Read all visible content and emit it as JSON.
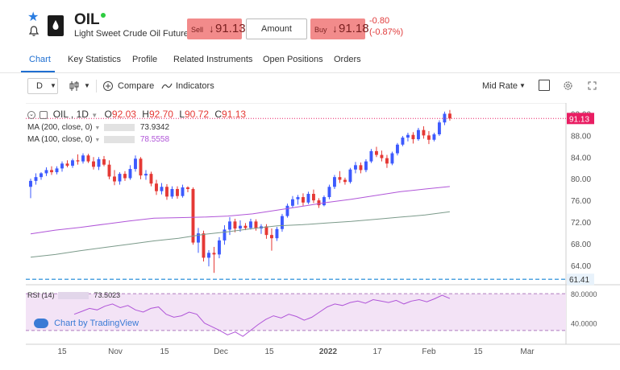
{
  "header": {
    "symbol": "OIL",
    "description": "Light Sweet Crude Oil Futures",
    "sell": {
      "label": "Sell",
      "arrow": "↓",
      "price": "91.13"
    },
    "amount_placeholder": "Amount",
    "buy": {
      "label": "Buy",
      "arrow": "↓",
      "price": "91.18"
    },
    "change_abs": "-0.80",
    "change_pct": "(-0.87%)"
  },
  "tabs": [
    {
      "label": "Chart",
      "active": true
    },
    {
      "label": "Key Statistics"
    },
    {
      "label": "Profile"
    },
    {
      "label": "Related Instruments"
    },
    {
      "label": "Open Positions"
    },
    {
      "label": "Orders"
    }
  ],
  "toolbar": {
    "interval": "D",
    "compare_label": "Compare",
    "indicators_label": "Indicators",
    "rate": "Mid Rate"
  },
  "legend": {
    "title": "OIL , 1D",
    "o_label": "O",
    "o_value": "92.03",
    "h_label": "H",
    "h_value": "92.70",
    "l_label": "L",
    "l_value": "90.72",
    "c_label": "C",
    "c_value": "91.13",
    "ma200_label": "MA (200, close, 0)",
    "ma200_value": "73.9342",
    "ma100_label": "MA (100, close, 0)",
    "ma100_value": "78.5558",
    "rsi_label": "RSI (14)",
    "rsi_value": "73.5023",
    "watermark": "Chart by TradingView"
  },
  "price_axis": {
    "ticks": [
      "92.00",
      "88.00",
      "84.00",
      "80.00",
      "76.00",
      "72.00",
      "68.00",
      "64.00"
    ],
    "last_price": "91.13",
    "dashed_level": "61.41"
  },
  "rsi_axis": {
    "ticks": [
      "80.0000",
      "40.0000"
    ]
  },
  "time_axis": {
    "ticks": [
      "15",
      "Nov",
      "15",
      "Dec",
      "15",
      "2022",
      "17",
      "Feb",
      "15",
      "Mar"
    ]
  },
  "colors": {
    "up": "#3d5afe",
    "down": "#e53935",
    "ma200": "#7b9a8a",
    "ma100": "#b055d8",
    "rsi": "#b055d8",
    "last_price_bg": "#e91e63",
    "dashed_level_bg": "#4fa3e0",
    "accent": "#1f6fd1"
  },
  "chart_data": {
    "type": "candlestick",
    "ylim": [
      61,
      94
    ],
    "last_close": 91.13,
    "dashed_level": 61.41,
    "candles": [
      {
        "o": 78.5,
        "h": 80.0,
        "l": 76.4,
        "c": 79.6
      },
      {
        "o": 79.6,
        "h": 81.0,
        "l": 78.9,
        "c": 80.3
      },
      {
        "o": 80.3,
        "h": 81.2,
        "l": 79.8,
        "c": 81.0
      },
      {
        "o": 81.0,
        "h": 82.1,
        "l": 80.5,
        "c": 81.6
      },
      {
        "o": 81.6,
        "h": 82.3,
        "l": 80.7,
        "c": 81.2
      },
      {
        "o": 81.2,
        "h": 82.3,
        "l": 80.8,
        "c": 81.9
      },
      {
        "o": 81.9,
        "h": 83.2,
        "l": 81.3,
        "c": 82.8
      },
      {
        "o": 82.8,
        "h": 83.4,
        "l": 82.1,
        "c": 82.4
      },
      {
        "o": 82.4,
        "h": 83.7,
        "l": 82.0,
        "c": 83.4
      },
      {
        "o": 83.4,
        "h": 84.5,
        "l": 82.6,
        "c": 83.2
      },
      {
        "o": 83.2,
        "h": 84.7,
        "l": 82.8,
        "c": 84.3
      },
      {
        "o": 84.3,
        "h": 84.6,
        "l": 82.9,
        "c": 83.2
      },
      {
        "o": 83.2,
        "h": 84.0,
        "l": 81.7,
        "c": 82.2
      },
      {
        "o": 82.2,
        "h": 84.0,
        "l": 81.6,
        "c": 83.6
      },
      {
        "o": 83.6,
        "h": 84.2,
        "l": 82.3,
        "c": 82.6
      },
      {
        "o": 82.6,
        "h": 83.4,
        "l": 79.9,
        "c": 80.4
      },
      {
        "o": 80.4,
        "h": 81.6,
        "l": 78.8,
        "c": 79.5
      },
      {
        "o": 79.5,
        "h": 81.2,
        "l": 78.9,
        "c": 80.9
      },
      {
        "o": 80.9,
        "h": 81.4,
        "l": 79.6,
        "c": 80.1
      },
      {
        "o": 80.1,
        "h": 82.5,
        "l": 79.8,
        "c": 81.8
      },
      {
        "o": 81.8,
        "h": 84.3,
        "l": 81.3,
        "c": 83.7
      },
      {
        "o": 83.7,
        "h": 84.0,
        "l": 79.9,
        "c": 80.6
      },
      {
        "o": 80.6,
        "h": 81.6,
        "l": 79.8,
        "c": 80.9
      },
      {
        "o": 80.9,
        "h": 81.3,
        "l": 78.6,
        "c": 79.1
      },
      {
        "o": 79.1,
        "h": 79.8,
        "l": 77.0,
        "c": 77.7
      },
      {
        "o": 77.7,
        "h": 79.2,
        "l": 77.1,
        "c": 78.5
      },
      {
        "o": 78.5,
        "h": 79.0,
        "l": 76.1,
        "c": 76.7
      },
      {
        "o": 76.7,
        "h": 78.6,
        "l": 76.3,
        "c": 78.1
      },
      {
        "o": 78.1,
        "h": 78.6,
        "l": 76.3,
        "c": 76.8
      },
      {
        "o": 76.8,
        "h": 78.9,
        "l": 76.5,
        "c": 78.4
      },
      {
        "o": 78.4,
        "h": 78.6,
        "l": 77.5,
        "c": 78.1
      },
      {
        "o": 78.1,
        "h": 78.4,
        "l": 67.8,
        "c": 68.2
      },
      {
        "o": 68.2,
        "h": 70.9,
        "l": 66.3,
        "c": 69.9
      },
      {
        "o": 69.9,
        "h": 70.4,
        "l": 64.7,
        "c": 65.4
      },
      {
        "o": 65.4,
        "h": 66.8,
        "l": 63.8,
        "c": 66.3
      },
      {
        "o": 66.3,
        "h": 67.4,
        "l": 62.6,
        "c": 66.0
      },
      {
        "o": 66.0,
        "h": 69.2,
        "l": 65.3,
        "c": 68.6
      },
      {
        "o": 68.6,
        "h": 71.4,
        "l": 67.8,
        "c": 70.6
      },
      {
        "o": 70.6,
        "h": 72.9,
        "l": 69.6,
        "c": 72.1
      },
      {
        "o": 72.1,
        "h": 72.6,
        "l": 70.1,
        "c": 70.8
      },
      {
        "o": 70.8,
        "h": 72.3,
        "l": 70.2,
        "c": 71.3
      },
      {
        "o": 71.3,
        "h": 71.8,
        "l": 70.5,
        "c": 70.9
      },
      {
        "o": 70.9,
        "h": 72.6,
        "l": 70.6,
        "c": 72.1
      },
      {
        "o": 72.1,
        "h": 72.5,
        "l": 70.4,
        "c": 70.8
      },
      {
        "o": 70.8,
        "h": 71.6,
        "l": 69.8,
        "c": 71.2
      },
      {
        "o": 71.2,
        "h": 71.6,
        "l": 68.9,
        "c": 69.6
      },
      {
        "o": 69.6,
        "h": 70.8,
        "l": 66.7,
        "c": 69.0
      },
      {
        "o": 69.0,
        "h": 71.1,
        "l": 68.5,
        "c": 70.7
      },
      {
        "o": 70.7,
        "h": 73.5,
        "l": 70.2,
        "c": 73.1
      },
      {
        "o": 73.1,
        "h": 75.4,
        "l": 72.8,
        "c": 75.0
      },
      {
        "o": 75.0,
        "h": 76.8,
        "l": 74.6,
        "c": 76.2
      },
      {
        "o": 76.2,
        "h": 77.0,
        "l": 75.2,
        "c": 76.6
      },
      {
        "o": 76.6,
        "h": 77.3,
        "l": 75.0,
        "c": 75.6
      },
      {
        "o": 75.6,
        "h": 77.6,
        "l": 75.3,
        "c": 77.2
      },
      {
        "o": 77.2,
        "h": 78.0,
        "l": 75.5,
        "c": 76.0
      },
      {
        "o": 76.0,
        "h": 76.4,
        "l": 74.6,
        "c": 75.1
      },
      {
        "o": 75.1,
        "h": 76.9,
        "l": 74.9,
        "c": 76.6
      },
      {
        "o": 76.6,
        "h": 78.9,
        "l": 76.2,
        "c": 78.5
      },
      {
        "o": 78.5,
        "h": 80.7,
        "l": 78.1,
        "c": 80.3
      },
      {
        "o": 80.3,
        "h": 81.4,
        "l": 79.2,
        "c": 79.8
      },
      {
        "o": 79.8,
        "h": 80.2,
        "l": 78.9,
        "c": 79.4
      },
      {
        "o": 79.4,
        "h": 82.0,
        "l": 79.1,
        "c": 81.7
      },
      {
        "o": 81.7,
        "h": 83.1,
        "l": 81.0,
        "c": 82.5
      },
      {
        "o": 82.5,
        "h": 83.0,
        "l": 81.0,
        "c": 81.6
      },
      {
        "o": 81.6,
        "h": 83.6,
        "l": 81.2,
        "c": 83.2
      },
      {
        "o": 83.2,
        "h": 85.5,
        "l": 82.9,
        "c": 85.1
      },
      {
        "o": 85.1,
        "h": 85.9,
        "l": 84.0,
        "c": 84.4
      },
      {
        "o": 84.4,
        "h": 85.2,
        "l": 83.2,
        "c": 83.8
      },
      {
        "o": 83.8,
        "h": 84.4,
        "l": 82.0,
        "c": 82.8
      },
      {
        "o": 82.8,
        "h": 85.0,
        "l": 82.5,
        "c": 84.7
      },
      {
        "o": 84.7,
        "h": 86.6,
        "l": 84.3,
        "c": 86.3
      },
      {
        "o": 86.3,
        "h": 87.9,
        "l": 86.0,
        "c": 87.6
      },
      {
        "o": 87.6,
        "h": 88.5,
        "l": 86.9,
        "c": 88.1
      },
      {
        "o": 88.1,
        "h": 88.6,
        "l": 86.5,
        "c": 87.3
      },
      {
        "o": 87.3,
        "h": 89.4,
        "l": 87.0,
        "c": 89.0
      },
      {
        "o": 89.0,
        "h": 89.7,
        "l": 87.4,
        "c": 88.0
      },
      {
        "o": 88.0,
        "h": 88.8,
        "l": 86.4,
        "c": 87.2
      },
      {
        "o": 87.2,
        "h": 88.5,
        "l": 86.9,
        "c": 88.2
      },
      {
        "o": 88.2,
        "h": 90.8,
        "l": 87.9,
        "c": 90.4
      },
      {
        "o": 90.4,
        "h": 92.4,
        "l": 89.9,
        "c": 92.0
      },
      {
        "o": 92.03,
        "h": 92.7,
        "l": 90.72,
        "c": 91.13
      }
    ],
    "ma200": [
      65.5,
      66.0,
      66.7,
      67.3,
      67.9,
      68.5,
      69.0,
      69.7,
      70.2,
      70.8,
      71.3,
      71.5,
      71.8,
      72.1,
      72.5,
      72.9,
      73.3,
      73.9
    ],
    "ma100": [
      69.8,
      70.5,
      71.0,
      71.6,
      72.2,
      72.7,
      72.8,
      72.9,
      73.1,
      73.5,
      74.2,
      74.9,
      75.6,
      76.2,
      76.9,
      77.6,
      78.1,
      78.56
    ],
    "rsi": [
      52,
      56,
      60,
      58,
      63,
      66,
      61,
      64,
      58,
      55,
      60,
      62,
      52,
      48,
      50,
      55,
      52,
      40,
      35,
      30,
      24,
      28,
      22,
      30,
      38,
      45,
      50,
      47,
      52,
      49,
      44,
      48,
      55,
      62,
      66,
      64,
      68,
      70,
      67,
      72,
      70,
      68,
      71,
      66,
      70,
      72,
      69,
      73,
      78,
      73.5
    ],
    "rsi_ylim": [
      20,
      90
    ]
  }
}
